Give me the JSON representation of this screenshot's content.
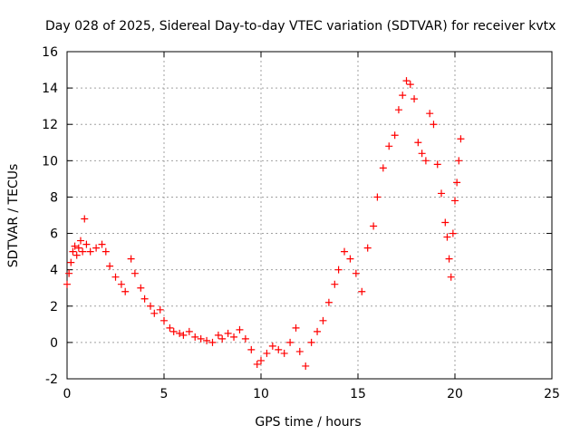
{
  "chart_data": {
    "type": "scatter",
    "title": "Day 028 of 2025, Sidereal Day-to-day VTEC variation (SDTVAR) for receiver kvtx",
    "xlabel": "GPS time / hours",
    "ylabel": "SDTVAR / TECUs",
    "xlim": [
      0,
      25
    ],
    "ylim": [
      -2,
      16
    ],
    "xticks": [
      "0",
      "5",
      "10",
      "15",
      "20",
      "25"
    ],
    "yticks": [
      "-2",
      "0",
      "2",
      "4",
      "6",
      "8",
      "10",
      "12",
      "14",
      "16"
    ],
    "grid": true,
    "marker": "+",
    "color": "#ff0000",
    "series": [
      {
        "name": "SDTVAR",
        "x": [
          0.0,
          0.1,
          0.2,
          0.3,
          0.4,
          0.5,
          0.6,
          0.7,
          0.8,
          0.9,
          1.0,
          1.2,
          1.5,
          1.8,
          2.0,
          2.2,
          2.5,
          2.8,
          3.0,
          3.3,
          3.5,
          3.8,
          4.0,
          4.3,
          4.5,
          4.8,
          5.0,
          5.3,
          5.5,
          5.8,
          6.0,
          6.3,
          6.6,
          6.9,
          7.2,
          7.5,
          7.8,
          8.0,
          8.3,
          8.6,
          8.9,
          9.2,
          9.5,
          9.8,
          10.0,
          10.3,
          10.6,
          10.9,
          11.2,
          11.5,
          11.8,
          12.0,
          12.3,
          12.6,
          12.9,
          13.2,
          13.5,
          13.8,
          14.0,
          14.3,
          14.6,
          14.9,
          15.2,
          15.5,
          15.8,
          16.0,
          16.3,
          16.6,
          16.9,
          17.1,
          17.3,
          17.5,
          17.7,
          17.9,
          18.1,
          18.3,
          18.5,
          18.7,
          18.9,
          19.1,
          19.3,
          19.5,
          19.6,
          19.7,
          19.8,
          19.9,
          20.0,
          20.1,
          20.2,
          20.3
        ],
        "y": [
          3.2,
          3.8,
          4.4,
          5.0,
          5.3,
          4.8,
          5.2,
          5.6,
          5.0,
          6.8,
          5.4,
          5.0,
          5.2,
          5.4,
          5.0,
          4.2,
          3.6,
          3.2,
          2.8,
          4.6,
          3.8,
          3.0,
          2.4,
          2.0,
          1.6,
          1.8,
          1.2,
          0.8,
          0.6,
          0.5,
          0.4,
          0.6,
          0.3,
          0.2,
          0.1,
          0.0,
          0.4,
          0.2,
          0.5,
          0.3,
          0.7,
          0.2,
          -0.4,
          -1.2,
          -1.0,
          -0.6,
          -0.2,
          -0.4,
          -0.6,
          0.0,
          0.8,
          -0.5,
          -1.3,
          0.0,
          0.6,
          1.2,
          2.2,
          3.2,
          4.0,
          5.0,
          4.6,
          3.8,
          2.8,
          5.2,
          6.4,
          8.0,
          9.6,
          10.8,
          11.4,
          12.8,
          13.6,
          14.4,
          14.2,
          13.4,
          11.0,
          10.4,
          10.0,
          12.6,
          12.0,
          9.8,
          8.2,
          6.6,
          5.8,
          4.6,
          3.6,
          6.0,
          7.8,
          8.8,
          10.0,
          11.2
        ]
      }
    ]
  }
}
